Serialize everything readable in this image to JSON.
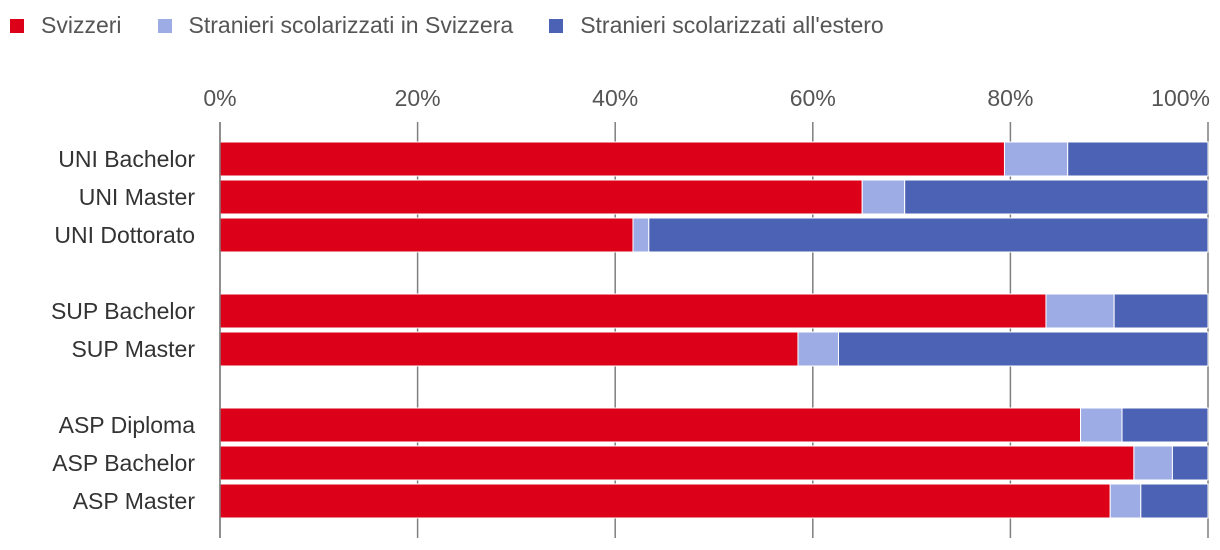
{
  "colors": {
    "svizzeri": "#dc0018",
    "stranieri_ch": "#9dace4",
    "stranieri_estero": "#4b62b5",
    "grid": "#7f7f7f",
    "axis_text": "#555555",
    "label_text": "#333333"
  },
  "legend": [
    {
      "label": "Svizzeri",
      "color": "#dc0018"
    },
    {
      "label": "Stranieri scolarizzati in Svizzera",
      "color": "#9dace4"
    },
    {
      "label": "Stranieri scolarizzati all'estero",
      "color": "#4b62b5"
    }
  ],
  "chart_data": {
    "type": "bar",
    "orientation": "horizontal",
    "stacked": true,
    "normalized": true,
    "title": "",
    "xlabel": "",
    "ylabel": "",
    "xlim": [
      0,
      100
    ],
    "x_ticks": [
      0,
      20,
      40,
      60,
      80,
      100
    ],
    "x_tick_labels": [
      "0%",
      "20%",
      "40%",
      "60%",
      "80%",
      "100%"
    ],
    "grid": true,
    "legend_position": "top-left",
    "groups": [
      [
        "UNI Bachelor",
        "UNI Master",
        "UNI Dottorato"
      ],
      [
        "SUP Bachelor",
        "SUP Master"
      ],
      [
        "ASP Diploma",
        "ASP Bachelor",
        "ASP Master"
      ]
    ],
    "categories": [
      "UNI Bachelor",
      "UNI Master",
      "UNI Dottorato",
      "SUP Bachelor",
      "SUP Master",
      "ASP Diploma",
      "ASP Bachelor",
      "ASP Master"
    ],
    "series": [
      {
        "name": "Svizzeri",
        "values": [
          79.4,
          65.0,
          41.8,
          83.6,
          58.5,
          87.1,
          92.5,
          90.1
        ]
      },
      {
        "name": "Stranieri scolarizzati in Svizzera",
        "values": [
          6.4,
          4.3,
          1.6,
          6.9,
          4.1,
          4.2,
          3.9,
          3.1
        ]
      },
      {
        "name": "Stranieri scolarizzati all'estero",
        "values": [
          14.2,
          30.7,
          56.6,
          9.5,
          37.4,
          8.7,
          3.6,
          6.8
        ]
      }
    ]
  }
}
